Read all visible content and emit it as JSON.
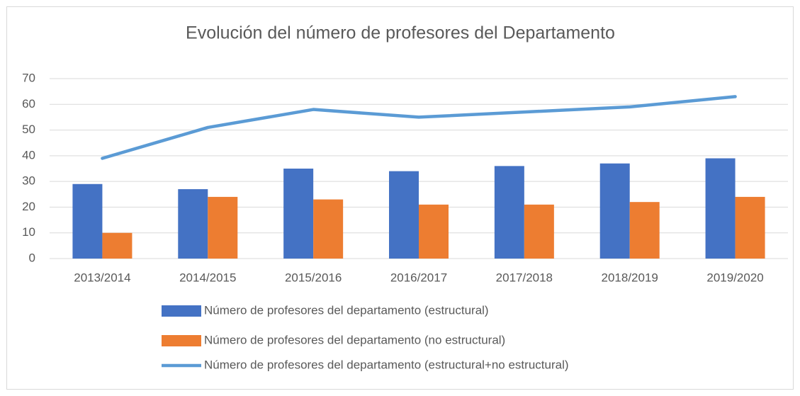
{
  "chart_data": {
    "type": "bar",
    "title": "Evolución del número de profesores del Departamento",
    "categories": [
      "2013/2014",
      "2014/2015",
      "2015/2016",
      "2016/2017",
      "2017/2018",
      "2018/2019",
      "2019/2020"
    ],
    "series": [
      {
        "name": "Número de profesores del departamento (estructural)",
        "type": "bar",
        "color": "#4472c4",
        "values": [
          29,
          27,
          35,
          34,
          36,
          37,
          39
        ]
      },
      {
        "name": "Número de profesores del departamento (no estructural)",
        "type": "bar",
        "color": "#ed7d31",
        "values": [
          10,
          24,
          23,
          21,
          21,
          22,
          24
        ]
      },
      {
        "name": "Número de profesores del departamento (estructural+no estructural)",
        "type": "line",
        "color": "#5b9bd5",
        "values": [
          39,
          51,
          58,
          55,
          57,
          59,
          63
        ]
      }
    ],
    "ylim": [
      0,
      70
    ],
    "yticks": [
      0,
      10,
      20,
      30,
      40,
      50,
      60,
      70
    ],
    "grid": true,
    "legend": "bottom"
  }
}
